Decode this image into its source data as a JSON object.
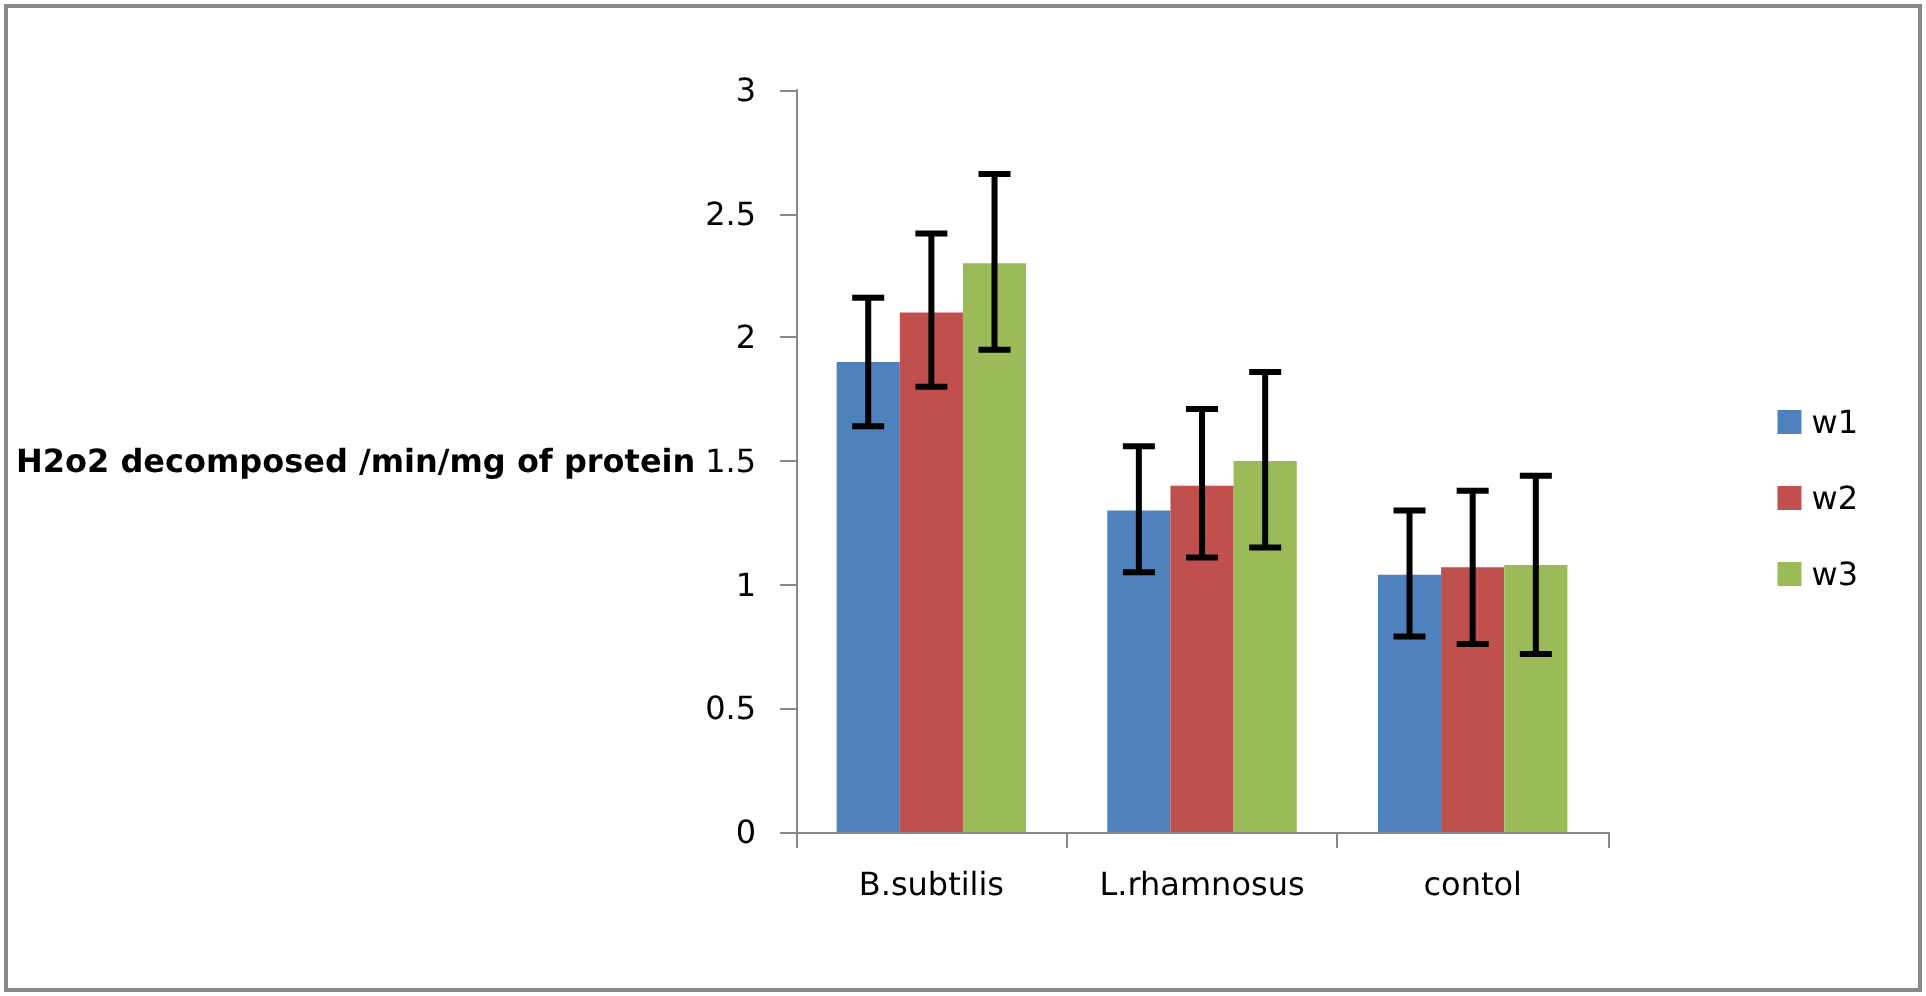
{
  "chart_data": {
    "type": "bar",
    "ylabel": "H2o2 decomposed /min/mg of protein",
    "categories": [
      "B.subtilis",
      "L.rhamnosus",
      "contol"
    ],
    "series": [
      {
        "name": "w1",
        "color": "#4f81bd",
        "values": [
          1.9,
          1.3,
          1.04
        ],
        "errors": [
          [
            1.64,
            2.16
          ],
          [
            1.05,
            1.56
          ],
          [
            0.79,
            1.3
          ]
        ]
      },
      {
        "name": "w2",
        "color": "#c0504d",
        "values": [
          2.1,
          1.4,
          1.07
        ],
        "errors": [
          [
            1.8,
            2.42
          ],
          [
            1.11,
            1.71
          ],
          [
            0.76,
            1.38
          ]
        ]
      },
      {
        "name": "w3",
        "color": "#9bbb59",
        "values": [
          2.3,
          1.5,
          1.08
        ],
        "errors": [
          [
            1.95,
            2.66
          ],
          [
            1.15,
            1.86
          ],
          [
            0.72,
            1.44
          ]
        ]
      }
    ],
    "ylim": [
      0,
      3
    ],
    "yticks": [
      0,
      0.5,
      1,
      1.5,
      2,
      2.5,
      3
    ],
    "grid": false,
    "legend": "right"
  }
}
